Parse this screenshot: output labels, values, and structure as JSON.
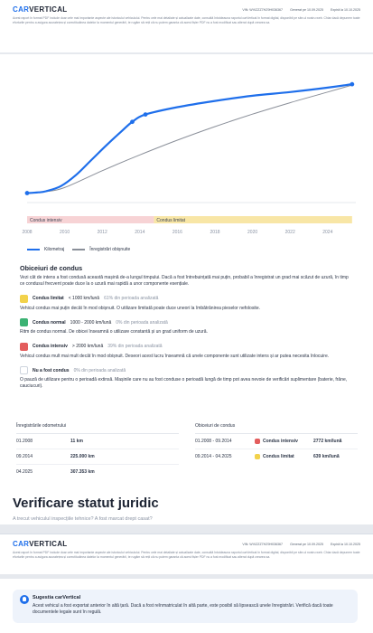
{
  "header": {
    "logo_car": "CAR",
    "logo_vertical": "VERTICAL",
    "vin": "VIN: WVIZZZ7HZ9H036367",
    "generated": "Generat pe 10.09.2025",
    "expires": "Expiră la 10.10.2025",
    "disclaimer": "Acest raport în format PDF include doar cele mai importante aspecte ale istoricului vehiculului. Pentru cele mai detaliate și actualizate date, consultă întotdeauna raportul carVertical în format digital, disponibil pe site-ul nostru web. Chiar dacă depunem toate eforturile pentru a asigura acuratețea și corectitudinea datelor la momentul generării, te rugăm să reții că nu putem garanta că acest fișier PDF nu a fost modificat sau alterat după crearea sa."
  },
  "chart_data": {
    "type": "line",
    "x_ticks": [
      "2008",
      "2010",
      "2012",
      "2014",
      "2016",
      "2018",
      "2020",
      "2022",
      "2024"
    ],
    "xlim": [
      2008,
      2025.5
    ],
    "series": [
      {
        "name": "Kilometraj",
        "color": "#1f6feb",
        "x": [
          2008.0,
          2008.6,
          2009.0,
          2009.8,
          2010.6,
          2011.4,
          2012.2,
          2013.0,
          2013.6,
          2014.3,
          2016.0,
          2018.0,
          2020.0,
          2022.0,
          2024.0,
          2025.3
        ],
        "y": [
          11,
          13,
          16,
          30,
          60,
          100,
          140,
          178,
          205,
          225,
          245,
          262,
          276,
          286,
          298,
          307.353
        ]
      },
      {
        "name": "Înregistrări obișnuite",
        "color": "#8a8f99",
        "x": [
          2008.0,
          2009.0,
          2010.0,
          2012.0,
          2014.0,
          2016.0,
          2018.0,
          2020.0,
          2022.0,
          2024.0,
          2025.3
        ],
        "y": [
          11,
          15,
          26,
          72,
          115,
          155,
          192,
          226,
          257,
          286,
          305
        ]
      }
    ],
    "bands": [
      {
        "label": "Condus intensiv",
        "from": 2008.0,
        "to": 2014.75,
        "color": "#f7d3d5"
      },
      {
        "label": "Condus limitat",
        "from": 2014.75,
        "to": 2025.3,
        "color": "#f8e6a6"
      }
    ],
    "legend": [
      "Kilometraj",
      "Înregistrări obișnuite"
    ],
    "legend_position": "bottom-left",
    "grid": false
  },
  "habits": {
    "title": "Obiceiuri de condus",
    "intro": "Vezi cât de intens a fost condusă această mașină de-a lungul timpului. Dacă a fost întrebuințată mai puțin, probabil a înregistrat un grad mai scăzut de uzură, în timp ce condusul frecvent poate duce la o uzură mai rapidă a unor componente esențiale.",
    "items": [
      {
        "color": "#f2d24b",
        "name": "Condus limitat",
        "range": "< 1000 km/lună",
        "percent": "61% din perioada analizată",
        "desc": "Vehicul condus mai puțin decât în mod obișnuit. O utilizare limitată poate duce uneori la îmbătrânirea pieselor nefolosite."
      },
      {
        "color": "#3bb273",
        "name": "Condus normal",
        "range": "1000 - 2000 km/lună",
        "percent": "0% din perioada analizată",
        "desc": "Ritm de condus normal. De obicei înseamnă o utilizare constantă și un grad uniform de uzură."
      },
      {
        "color": "#e35d5d",
        "name": "Condus intensiv",
        "range": "> 2000 km/lună",
        "percent": "39% din perioada analizată",
        "desc": "Vehicul condus mult mai mult decât în mod obișnuit. Deseori acest lucru înseamnă că unele componente sunt utilizate intens și ar putea necesita înlocuire."
      },
      {
        "color": "#ffffff",
        "name": "Nu a fost condus",
        "range": "",
        "percent": "0% din perioada analizată",
        "desc": "O pauză de utilizare pentru o perioadă extinsă. Mașinile care nu au fost conduse o perioadă lungă de timp pot avea nevoie de verificări suplimentare (baterie, frâne, cauciucuri)."
      }
    ]
  },
  "odometer_table": {
    "title": "Înregistrările odometrului",
    "rows": [
      {
        "date": "01.2008",
        "value": "11 km"
      },
      {
        "date": "09.2014",
        "value": "225.000 km"
      },
      {
        "date": "04.2025",
        "value": "307.353 km"
      }
    ]
  },
  "habits_table": {
    "title": "Obiceiuri de condus",
    "rows": [
      {
        "period": "01.2008 - 09.2014",
        "color": "#e35d5d",
        "label": "Condus intensiv",
        "value": "2772 km/lună"
      },
      {
        "period": "09.2014 - 04.2025",
        "color": "#f2d24b",
        "label": "Condus limitat",
        "value": "639 km/lună"
      }
    ]
  },
  "legal": {
    "title": "Verificare statut juridic",
    "subtitle": "A trecut vehiculul inspecțiile tehnice? A fost marcat drept casat?"
  },
  "suggestion": {
    "title": "Sugestia carVertical",
    "text": "Acest vehicul a fost exportat anterior în altă țară. Dacă a fost reînmatriculat în altă parte, este posibil să lipsească unele înregistrări. Verifică dacă toate documentele legale sunt în regulă."
  }
}
